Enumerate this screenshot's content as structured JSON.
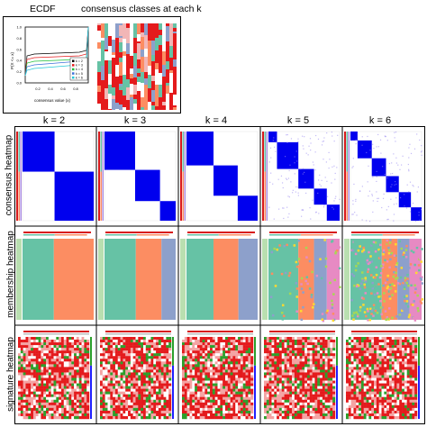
{
  "top": {
    "ecdf_title": "ECDF",
    "consensus_title": "consensus classes at each k",
    "ecdf_ylabel": "P(X <= x)",
    "ecdf_xlabel": "consensus value (x)",
    "ecdf_yticks": [
      "0.0",
      "0.2",
      "0.4",
      "0.6",
      "0.8",
      "1.0"
    ],
    "ecdf_xticks": [
      "0.0",
      "0.2",
      "0.4",
      "0.6",
      "0.8",
      "1.0"
    ],
    "legend": [
      {
        "label": "k = 2",
        "color": "#000000"
      },
      {
        "label": "k = 3",
        "color": "#e41a1c"
      },
      {
        "label": "k = 4",
        "color": "#1dbf3a"
      },
      {
        "label": "k = 5",
        "color": "#3b6fd8"
      },
      {
        "label": "k = 6",
        "color": "#22c7d6"
      }
    ]
  },
  "columns": [
    "k = 2",
    "k = 3",
    "k = 4",
    "k = 5",
    "k = 6"
  ],
  "rows": [
    "consensus heatmap",
    "membership heatmap",
    "signature heatmap"
  ],
  "colors": {
    "consensus": "#0000ee",
    "class1": "#66c2a5",
    "class2": "#fc8d62",
    "class3": "#8da0cb",
    "class4": "#e78ac3",
    "class5": "#a6d854",
    "class6": "#ffd92f",
    "sig_red": "#e41a1c",
    "sig_green": "#2ca02c",
    "annot_red": "#d7191c",
    "annot_blue": "#2020ff"
  },
  "membership_splits": [
    [
      0.44
    ],
    [
      0.44,
      0.8
    ],
    [
      0.38,
      0.73
    ],
    [
      0.42,
      0.64,
      0.82
    ],
    [
      0.44,
      0.66,
      0.83
    ]
  ],
  "consensus_blocks": [
    [
      0.45
    ],
    [
      0.43,
      0.78
    ],
    [
      0.38,
      0.72
    ],
    [
      0.12,
      0.42,
      0.64,
      0.82
    ],
    [
      0.1,
      0.3,
      0.5,
      0.68,
      0.85
    ]
  ]
}
